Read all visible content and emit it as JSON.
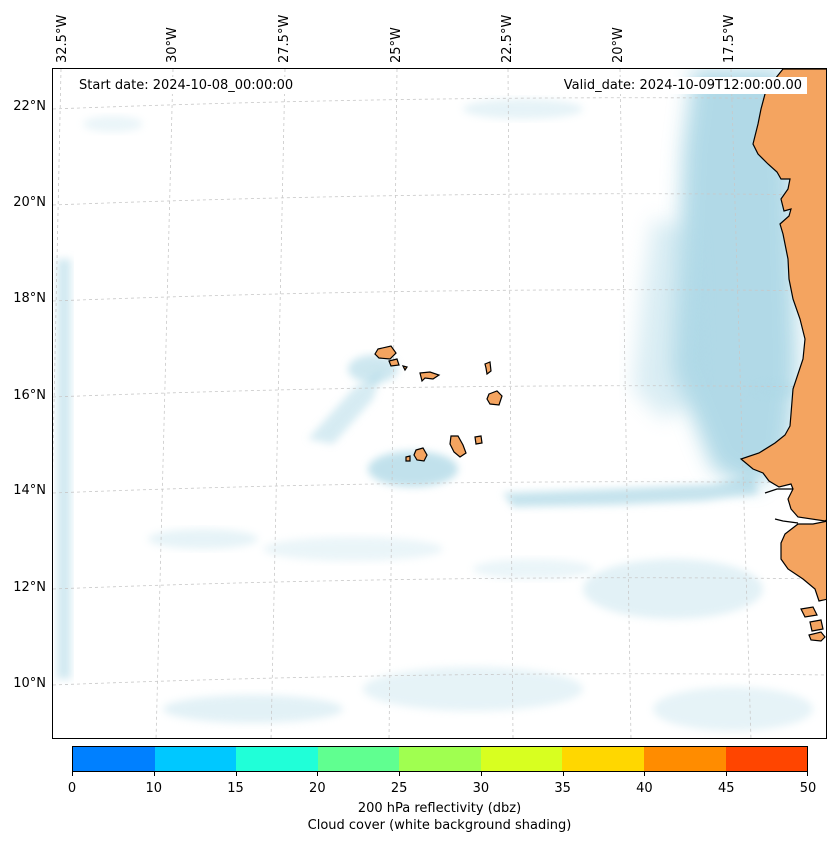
{
  "map": {
    "start_date": "Start date: 2024-10-08_00:00:00",
    "valid_date": "Valid_date: 2024-10-09T12:00:00.00",
    "longitude_labels": [
      "32.5°W",
      "30°W",
      "27.5°W",
      "25°W",
      "22.5°W",
      "20°W",
      "17.5°W"
    ],
    "latitude_labels": [
      "22°N",
      "20°N",
      "18°N",
      "16°N",
      "14°N",
      "12°N",
      "10°N"
    ],
    "colors": {
      "land": "#f4a460",
      "cloud": "#add8e6",
      "coastline": "#000000",
      "gridline": "#c8c8c8"
    }
  },
  "colorbar": {
    "ticks": [
      "0",
      "10",
      "15",
      "20",
      "25",
      "30",
      "35",
      "40",
      "45",
      "50"
    ],
    "colors": [
      "#0080ff",
      "#00c8ff",
      "#20ffd8",
      "#60ff90",
      "#a0ff50",
      "#d8ff20",
      "#ffd700",
      "#ff8c00",
      "#ff4500"
    ],
    "label_line1": "200 hPa reflectivity (dbz)",
    "label_line2": "Cloud cover (white background shading)"
  }
}
